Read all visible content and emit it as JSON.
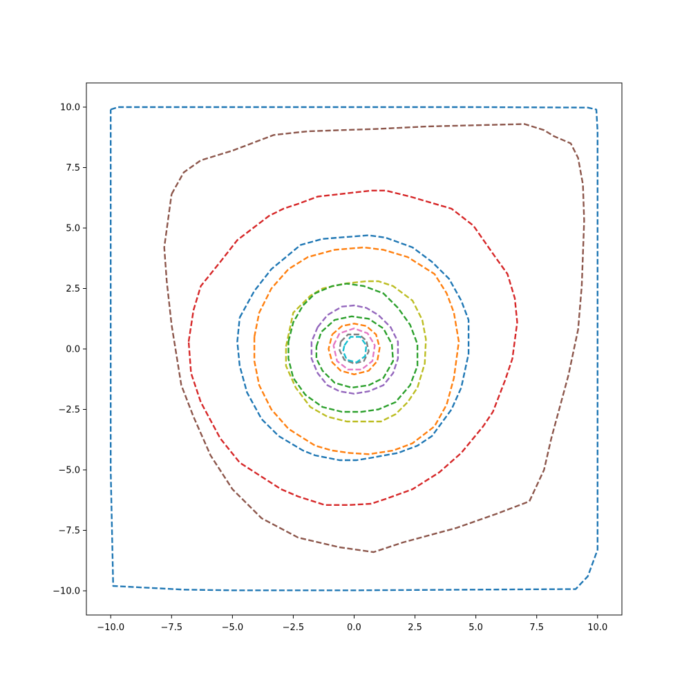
{
  "chart_data": {
    "type": "line",
    "title": "",
    "xlabel": "",
    "ylabel": "",
    "xlim": [
      -11,
      11
    ],
    "ylim": [
      -11,
      11
    ],
    "xticks": [
      -10.0,
      -7.5,
      -5.0,
      -2.5,
      0.0,
      2.5,
      5.0,
      7.5,
      10.0
    ],
    "yticks": [
      -10.0,
      -7.5,
      -5.0,
      -2.5,
      0.0,
      2.5,
      5.0,
      7.5,
      10.0
    ],
    "xtick_labels": [
      "−10.0",
      "−7.5",
      "−5.0",
      "−2.5",
      "0.0",
      "2.5",
      "5.0",
      "7.5",
      "10.0"
    ],
    "ytick_labels": [
      "−10.0",
      "−7.5",
      "−5.0",
      "−2.5",
      "0.0",
      "2.5",
      "5.0",
      "7.5",
      "10.0"
    ],
    "grid": false,
    "legend": false,
    "line_style": "dashed",
    "series": [
      {
        "color": "#1f77b4",
        "points": [
          [
            -10.0,
            9.9
          ],
          [
            -9.7,
            10.0
          ],
          [
            -5,
            10.0
          ],
          [
            0,
            10.0
          ],
          [
            5,
            10.0
          ],
          [
            9.6,
            9.98
          ],
          [
            9.95,
            9.9
          ],
          [
            10.0,
            9.0
          ],
          [
            10.0,
            0
          ],
          [
            10.0,
            -8.3
          ],
          [
            9.6,
            -9.4
          ],
          [
            9.1,
            -9.93
          ],
          [
            5,
            -9.95
          ],
          [
            0,
            -9.98
          ],
          [
            -5,
            -9.98
          ],
          [
            -7,
            -9.95
          ],
          [
            -9.9,
            -9.8
          ],
          [
            -10.0,
            -5
          ],
          [
            -10.0,
            5
          ],
          [
            -10.0,
            9.9
          ]
        ]
      },
      {
        "color": "#8c564b",
        "points": [
          [
            -7.5,
            6.4
          ],
          [
            -7.0,
            7.3
          ],
          [
            -6.3,
            7.8
          ],
          [
            -5.0,
            8.2
          ],
          [
            -3.3,
            8.85
          ],
          [
            -1.9,
            9.0
          ],
          [
            1.0,
            9.1
          ],
          [
            3.0,
            9.2
          ],
          [
            7.0,
            9.3
          ],
          [
            7.8,
            9.05
          ],
          [
            8.2,
            8.8
          ],
          [
            8.9,
            8.5
          ],
          [
            9.2,
            7.9
          ],
          [
            9.4,
            6.8
          ],
          [
            9.45,
            5.3
          ],
          [
            9.35,
            2.6
          ],
          [
            9.2,
            0.8
          ],
          [
            8.8,
            -1.1
          ],
          [
            8.1,
            -3.7
          ],
          [
            7.8,
            -5.0
          ],
          [
            7.2,
            -6.3
          ],
          [
            5.9,
            -6.8
          ],
          [
            4.2,
            -7.4
          ],
          [
            2.0,
            -8.0
          ],
          [
            0.8,
            -8.4
          ],
          [
            -0.6,
            -8.2
          ],
          [
            -2.3,
            -7.8
          ],
          [
            -3.8,
            -7.0
          ],
          [
            -5.0,
            -5.8
          ],
          [
            -5.9,
            -4.4
          ],
          [
            -6.6,
            -2.8
          ],
          [
            -7.1,
            -1.5
          ],
          [
            -7.5,
            1.0
          ],
          [
            -7.7,
            2.8
          ],
          [
            -7.8,
            4.2
          ],
          [
            -7.5,
            6.4
          ]
        ]
      },
      {
        "color": "#d62728",
        "points": [
          [
            -6.8,
            0.3
          ],
          [
            -6.6,
            1.6
          ],
          [
            -6.3,
            2.6
          ],
          [
            -5.5,
            3.6
          ],
          [
            -4.8,
            4.5
          ],
          [
            -3.5,
            5.5
          ],
          [
            -2.9,
            5.8
          ],
          [
            -2.3,
            6.0
          ],
          [
            -1.5,
            6.3
          ],
          [
            0.7,
            6.55
          ],
          [
            1.3,
            6.55
          ],
          [
            2.3,
            6.3
          ],
          [
            4.0,
            5.8
          ],
          [
            4.9,
            5.1
          ],
          [
            5.8,
            3.8
          ],
          [
            6.3,
            3.1
          ],
          [
            6.6,
            2.1
          ],
          [
            6.7,
            1.1
          ],
          [
            6.5,
            -0.4
          ],
          [
            6.2,
            -1.3
          ],
          [
            5.7,
            -2.6
          ],
          [
            5.3,
            -3.2
          ],
          [
            4.4,
            -4.3
          ],
          [
            3.5,
            -5.1
          ],
          [
            2.4,
            -5.8
          ],
          [
            1.3,
            -6.2
          ],
          [
            0.7,
            -6.4
          ],
          [
            -0.2,
            -6.45
          ],
          [
            -1.2,
            -6.45
          ],
          [
            -2.3,
            -6.1
          ],
          [
            -3.0,
            -5.8
          ],
          [
            -4.7,
            -4.7
          ],
          [
            -5.5,
            -3.7
          ],
          [
            -6.3,
            -2.2
          ],
          [
            -6.7,
            -1.0
          ],
          [
            -6.8,
            0.3
          ]
        ]
      },
      {
        "color": "#1f77b4",
        "points": [
          [
            -4.7,
            1.3
          ],
          [
            -4.1,
            2.4
          ],
          [
            -3.4,
            3.3
          ],
          [
            -2.2,
            4.3
          ],
          [
            -1.3,
            4.55
          ],
          [
            0.6,
            4.7
          ],
          [
            1.3,
            4.6
          ],
          [
            2.4,
            4.2
          ],
          [
            3.2,
            3.6
          ],
          [
            3.9,
            2.9
          ],
          [
            4.4,
            2.0
          ],
          [
            4.7,
            1.2
          ],
          [
            4.7,
            -0.2
          ],
          [
            4.4,
            -1.6
          ],
          [
            4.0,
            -2.5
          ],
          [
            3.2,
            -3.6
          ],
          [
            2.6,
            -4.0
          ],
          [
            1.8,
            -4.3
          ],
          [
            0.7,
            -4.5
          ],
          [
            0.1,
            -4.6
          ],
          [
            -0.6,
            -4.6
          ],
          [
            -1.6,
            -4.4
          ],
          [
            -2.1,
            -4.2
          ],
          [
            -3.1,
            -3.6
          ],
          [
            -3.8,
            -2.9
          ],
          [
            -4.4,
            -1.8
          ],
          [
            -4.7,
            -0.7
          ],
          [
            -4.8,
            0.3
          ],
          [
            -4.7,
            1.3
          ]
        ]
      },
      {
        "color": "#ff7f0e",
        "points": [
          [
            -4.1,
            0.5
          ],
          [
            -3.9,
            1.5
          ],
          [
            -3.4,
            2.5
          ],
          [
            -2.7,
            3.3
          ],
          [
            -1.9,
            3.8
          ],
          [
            -0.8,
            4.1
          ],
          [
            0.4,
            4.2
          ],
          [
            1.2,
            4.1
          ],
          [
            2.2,
            3.8
          ],
          [
            3.3,
            3.1
          ],
          [
            3.8,
            2.3
          ],
          [
            4.1,
            1.5
          ],
          [
            4.3,
            0.3
          ],
          [
            4.1,
            -1.2
          ],
          [
            3.8,
            -2.3
          ],
          [
            3.3,
            -3.2
          ],
          [
            2.4,
            -3.9
          ],
          [
            1.6,
            -4.2
          ],
          [
            0.6,
            -4.35
          ],
          [
            -0.2,
            -4.3
          ],
          [
            -0.9,
            -4.2
          ],
          [
            -1.6,
            -4.0
          ],
          [
            -2.7,
            -3.3
          ],
          [
            -3.4,
            -2.5
          ],
          [
            -3.9,
            -1.5
          ],
          [
            -4.1,
            -0.5
          ],
          [
            -4.1,
            0.5
          ]
        ]
      },
      {
        "color": "#bcbd22",
        "points": [
          [
            -2.8,
            0.1
          ],
          [
            -2.5,
            1.5
          ],
          [
            -1.8,
            2.2
          ],
          [
            -1.3,
            2.5
          ],
          [
            -0.4,
            2.7
          ],
          [
            0.5,
            2.8
          ],
          [
            1.0,
            2.8
          ],
          [
            1.6,
            2.6
          ],
          [
            2.4,
            2.0
          ],
          [
            2.8,
            1.2
          ],
          [
            2.95,
            0.4
          ],
          [
            2.9,
            -0.6
          ],
          [
            2.6,
            -1.6
          ],
          [
            2.2,
            -2.2
          ],
          [
            1.7,
            -2.7
          ],
          [
            1.1,
            -3.0
          ],
          [
            0.4,
            -3.0
          ],
          [
            -0.3,
            -3.0
          ],
          [
            -1.1,
            -2.8
          ],
          [
            -1.8,
            -2.4
          ],
          [
            -2.4,
            -1.6
          ],
          [
            -2.8,
            -0.7
          ],
          [
            -2.8,
            0.1
          ]
        ]
      },
      {
        "color": "#2ca02c",
        "points": [
          [
            -2.7,
            0.3
          ],
          [
            -2.5,
            1.1
          ],
          [
            -2.1,
            1.8
          ],
          [
            -1.6,
            2.3
          ],
          [
            -0.9,
            2.6
          ],
          [
            -0.3,
            2.7
          ],
          [
            0.4,
            2.6
          ],
          [
            1.2,
            2.3
          ],
          [
            1.8,
            1.7
          ],
          [
            2.3,
            1.0
          ],
          [
            2.6,
            0.2
          ],
          [
            2.6,
            -0.7
          ],
          [
            2.3,
            -1.5
          ],
          [
            1.7,
            -2.2
          ],
          [
            1.0,
            -2.5
          ],
          [
            0.3,
            -2.6
          ],
          [
            -0.5,
            -2.6
          ],
          [
            -1.3,
            -2.4
          ],
          [
            -2.0,
            -1.9
          ],
          [
            -2.5,
            -1.2
          ],
          [
            -2.7,
            -0.4
          ],
          [
            -2.7,
            0.3
          ]
        ]
      },
      {
        "color": "#9467bd",
        "points": [
          [
            -1.5,
            0.9
          ],
          [
            -1.1,
            1.4
          ],
          [
            -0.5,
            1.75
          ],
          [
            0.0,
            1.8
          ],
          [
            0.5,
            1.7
          ],
          [
            1.0,
            1.4
          ],
          [
            1.5,
            0.9
          ],
          [
            1.8,
            0.3
          ],
          [
            1.8,
            -0.4
          ],
          [
            1.6,
            -1.0
          ],
          [
            1.2,
            -1.5
          ],
          [
            0.6,
            -1.75
          ],
          [
            0.0,
            -1.85
          ],
          [
            -0.6,
            -1.75
          ],
          [
            -1.1,
            -1.5
          ],
          [
            -1.5,
            -1.0
          ],
          [
            -1.75,
            -0.4
          ],
          [
            -1.75,
            0.3
          ],
          [
            -1.5,
            0.9
          ]
        ]
      },
      {
        "color": "#2ca02c",
        "points": [
          [
            -1.55,
            0.1
          ],
          [
            -1.35,
            0.7
          ],
          [
            -0.8,
            1.2
          ],
          [
            -0.1,
            1.35
          ],
          [
            0.6,
            1.25
          ],
          [
            1.2,
            0.85
          ],
          [
            1.55,
            0.2
          ],
          [
            1.6,
            -0.5
          ],
          [
            1.2,
            -1.2
          ],
          [
            0.6,
            -1.5
          ],
          [
            -0.1,
            -1.6
          ],
          [
            -0.8,
            -1.4
          ],
          [
            -1.3,
            -0.9
          ],
          [
            -1.55,
            -0.4
          ],
          [
            -1.55,
            0.1
          ]
        ]
      },
      {
        "color": "#ff7f0e",
        "points": [
          [
            -0.9,
            0.6
          ],
          [
            -0.5,
            0.95
          ],
          [
            0.0,
            1.05
          ],
          [
            0.5,
            0.95
          ],
          [
            0.9,
            0.6
          ],
          [
            1.05,
            0.05
          ],
          [
            0.95,
            -0.5
          ],
          [
            0.6,
            -0.9
          ],
          [
            0.0,
            -1.05
          ],
          [
            -0.55,
            -0.9
          ],
          [
            -0.9,
            -0.55
          ],
          [
            -1.05,
            0.0
          ],
          [
            -0.9,
            0.6
          ]
        ]
      },
      {
        "color": "#e377c2",
        "points": [
          [
            -0.85,
            0.15
          ],
          [
            -0.6,
            0.65
          ],
          [
            0.0,
            0.85
          ],
          [
            0.55,
            0.65
          ],
          [
            0.85,
            0.15
          ],
          [
            0.75,
            -0.5
          ],
          [
            0.3,
            -0.85
          ],
          [
            -0.25,
            -0.85
          ],
          [
            -0.7,
            -0.5
          ],
          [
            -0.85,
            0.15
          ]
        ]
      },
      {
        "color": "#7f7f7f",
        "points": [
          [
            -0.55,
            0.3
          ],
          [
            -0.25,
            0.6
          ],
          [
            0.2,
            0.6
          ],
          [
            0.5,
            0.35
          ],
          [
            0.6,
            -0.1
          ],
          [
            0.4,
            -0.5
          ],
          [
            0.0,
            -0.6
          ],
          [
            -0.4,
            -0.45
          ],
          [
            -0.6,
            -0.05
          ],
          [
            -0.55,
            0.3
          ]
        ]
      },
      {
        "color": "#17becf",
        "points": [
          [
            -0.4,
            0.15
          ],
          [
            -0.15,
            0.5
          ],
          [
            0.25,
            0.5
          ],
          [
            0.5,
            0.15
          ],
          [
            0.45,
            -0.3
          ],
          [
            0.1,
            -0.55
          ],
          [
            -0.3,
            -0.45
          ],
          [
            -0.45,
            -0.1
          ],
          [
            -0.4,
            0.15
          ]
        ]
      }
    ]
  }
}
